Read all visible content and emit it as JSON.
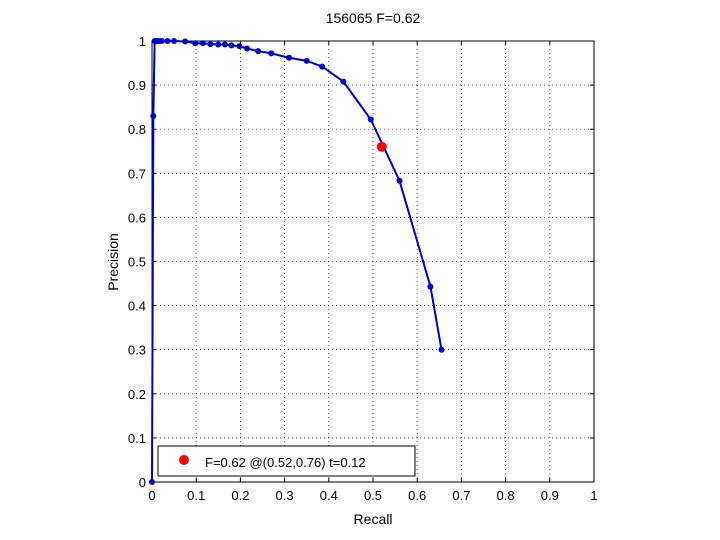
{
  "chart_data": {
    "type": "line",
    "title": "156065 F=0.62",
    "xlabel": "Recall",
    "ylabel": "Precision",
    "xlim": [
      0,
      1
    ],
    "ylim": [
      0,
      1
    ],
    "xticks": [
      "0",
      "0.1",
      "0.2",
      "0.3",
      "0.4",
      "0.5",
      "0.6",
      "0.7",
      "0.8",
      "0.9",
      "1"
    ],
    "yticks": [
      "0",
      "0.1",
      "0.2",
      "0.3",
      "0.4",
      "0.5",
      "0.6",
      "0.7",
      "0.8",
      "0.9",
      "1"
    ],
    "grid": true,
    "legend_position": "bottom-left",
    "series": [
      {
        "color": "#0000cc",
        "marker": "dot",
        "x": [
          0.0,
          0.003,
          0.006,
          0.008,
          0.012,
          0.016,
          0.022,
          0.035,
          0.05,
          0.075,
          0.098,
          0.115,
          0.132,
          0.15,
          0.165,
          0.18,
          0.198,
          0.215,
          0.24,
          0.27,
          0.31,
          0.35,
          0.385,
          0.433,
          0.495,
          0.56,
          0.63,
          0.655
        ],
        "y": [
          0.0,
          0.83,
          1.0,
          1.0,
          1.0,
          1.0,
          1.0,
          1.0,
          1.0,
          0.999,
          0.995,
          0.995,
          0.993,
          0.992,
          0.992,
          0.99,
          0.988,
          0.983,
          0.977,
          0.972,
          0.962,
          0.955,
          0.942,
          0.908,
          0.822,
          0.683,
          0.443,
          0.3
        ]
      }
    ],
    "best_point": {
      "recall": 0.52,
      "precision": 0.76,
      "color": "#ff0000"
    },
    "legend_text": "F=0.62 @(0.52,0.76) t=0.12"
  }
}
